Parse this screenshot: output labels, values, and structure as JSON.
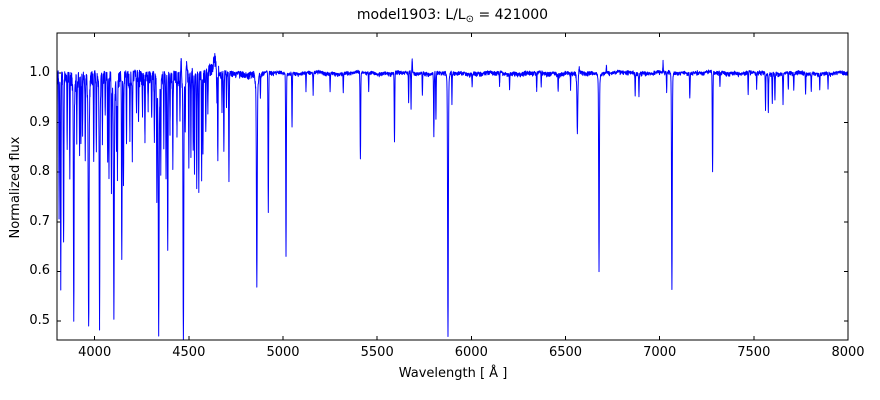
{
  "figure": {
    "background": "#ffffff",
    "frame_color": "#000000"
  },
  "chart_data": {
    "type": "line",
    "title": "model1903: L/L⊙ = 421000",
    "title_parts": {
      "prefix": "model1903: L/L",
      "subscript": "⊙",
      "suffix": " = 421000"
    },
    "xlabel": "Wavelength [ Å ]",
    "ylabel": "Normalized flux",
    "xlim": [
      3800,
      8000
    ],
    "ylim": [
      0.4617,
      1.0806
    ],
    "xticks": [
      4000,
      4500,
      5000,
      5500,
      6000,
      6500,
      7000,
      7500,
      8000
    ],
    "xtick_labels": [
      "4000",
      "4500",
      "5000",
      "5500",
      "6000",
      "6500",
      "7000",
      "7500",
      "8000"
    ],
    "yticks": [
      1.0,
      0.9,
      0.8,
      0.7,
      0.6,
      0.5
    ],
    "ytick_labels": [
      "1.0",
      "0.9",
      "0.8",
      "0.7",
      "0.6",
      "0.5"
    ],
    "line_color": "#0000ff",
    "continuum_flux": 1.0,
    "noise_regions": [
      [
        3800,
        4450,
        0.03,
        0.005
      ],
      [
        4450,
        4660,
        0.022,
        0.01
      ],
      [
        4660,
        4900,
        0.012,
        0.004
      ],
      [
        4900,
        5900,
        0.006,
        0.003
      ],
      [
        5900,
        6620,
        0.008,
        0.003
      ],
      [
        6620,
        7400,
        0.006,
        0.004
      ],
      [
        7400,
        8000,
        0.007,
        0.003
      ]
    ],
    "absorption_lines": [
      [
        3798,
        0.6,
        1.6
      ],
      [
        3811,
        0.72,
        1.2
      ],
      [
        3820,
        0.575,
        1.5
      ],
      [
        3835,
        0.66,
        1.6
      ],
      [
        3854,
        0.86,
        1.2
      ],
      [
        3868,
        0.8,
        1.2
      ],
      [
        3889,
        0.565,
        1.7
      ],
      [
        3889,
        0.95,
        5.0
      ],
      [
        3905,
        0.88,
        1.2
      ],
      [
        3920,
        0.84,
        1.2
      ],
      [
        3927,
        0.86,
        1.2
      ],
      [
        3936,
        0.89,
        1.2
      ],
      [
        3950,
        0.82,
        1.2
      ],
      [
        3968,
        0.55,
        2.0
      ],
      [
        3968,
        0.94,
        5.0
      ],
      [
        3995,
        0.82,
        1.4
      ],
      [
        4009,
        0.85,
        1.3
      ],
      [
        4026,
        0.555,
        1.7
      ],
      [
        4026,
        0.95,
        4.5
      ],
      [
        4041,
        0.88,
        1.3
      ],
      [
        4056,
        0.92,
        1.2
      ],
      [
        4069,
        0.82,
        1.3
      ],
      [
        4076,
        0.8,
        1.3
      ],
      [
        4089,
        0.78,
        1.4
      ],
      [
        4102,
        0.6,
        1.9
      ],
      [
        4102,
        0.93,
        5.5
      ],
      [
        4116,
        0.86,
        1.3
      ],
      [
        4121,
        0.8,
        1.3
      ],
      [
        4144,
        0.635,
        1.6
      ],
      [
        4153,
        0.78,
        1.3
      ],
      [
        4169,
        0.86,
        1.2
      ],
      [
        4187,
        0.88,
        1.2
      ],
      [
        4200,
        0.83,
        1.4
      ],
      [
        4222,
        0.93,
        1.2
      ],
      [
        4233,
        0.91,
        1.2
      ],
      [
        4254,
        0.92,
        1.2
      ],
      [
        4267,
        0.87,
        1.3
      ],
      [
        4284,
        0.93,
        1.2
      ],
      [
        4303,
        0.91,
        1.2
      ],
      [
        4317,
        0.87,
        1.3
      ],
      [
        4330,
        0.78,
        1.3
      ],
      [
        4340,
        0.56,
        1.9
      ],
      [
        4340,
        0.93,
        5.5
      ],
      [
        4351,
        0.82,
        1.3
      ],
      [
        4367,
        0.86,
        1.2
      ],
      [
        4379,
        0.79,
        1.3
      ],
      [
        4388,
        0.645,
        1.5
      ],
      [
        4400,
        0.9,
        1.2
      ],
      [
        4415,
        0.83,
        1.3
      ],
      [
        4437,
        0.89,
        1.2
      ],
      [
        4453,
        0.91,
        1.2
      ],
      [
        4471,
        0.515,
        1.9
      ],
      [
        4471,
        0.95,
        5.0
      ],
      [
        4481,
        0.89,
        1.2
      ],
      [
        4500,
        0.81,
        1.3
      ],
      [
        4511,
        0.83,
        1.2
      ],
      [
        4523,
        0.85,
        1.2
      ],
      [
        4530,
        0.8,
        1.2
      ],
      [
        4542,
        0.77,
        1.4
      ],
      [
        4553,
        0.76,
        1.3
      ],
      [
        4568,
        0.79,
        1.3
      ],
      [
        4575,
        0.84,
        1.2
      ],
      [
        4590,
        0.88,
        1.2
      ],
      [
        4601,
        0.92,
        1.2
      ],
      [
        4649,
        0.95,
        1.0
      ],
      [
        4654,
        0.82,
        1.3
      ],
      [
        4676,
        0.93,
        1.1
      ],
      [
        4686,
        0.84,
        1.4
      ],
      [
        4700,
        0.93,
        1.1
      ],
      [
        4713,
        0.78,
        1.4
      ],
      [
        4861,
        0.627,
        2.0
      ],
      [
        4861,
        0.95,
        5.5
      ],
      [
        4880,
        0.95,
        1.1
      ],
      [
        4922,
        0.72,
        1.6
      ],
      [
        5016,
        0.633,
        1.6
      ],
      [
        5048,
        0.89,
        1.3
      ],
      [
        5122,
        0.965,
        1.1
      ],
      [
        5160,
        0.958,
        1.1
      ],
      [
        5250,
        0.965,
        1.1
      ],
      [
        5320,
        0.96,
        1.1
      ],
      [
        5411,
        0.825,
        1.6
      ],
      [
        5455,
        0.962,
        1.1
      ],
      [
        5592,
        0.86,
        1.5
      ],
      [
        5667,
        0.94,
        1.2
      ],
      [
        5680,
        0.925,
        1.2
      ],
      [
        5740,
        0.955,
        1.1
      ],
      [
        5801,
        0.875,
        1.5
      ],
      [
        5812,
        0.905,
        1.4
      ],
      [
        5876,
        0.508,
        1.9
      ],
      [
        5876,
        0.96,
        5.0
      ],
      [
        5897,
        0.94,
        1.2
      ],
      [
        6004,
        0.975,
        1.0
      ],
      [
        6150,
        0.975,
        1.0
      ],
      [
        6203,
        0.97,
        1.1
      ],
      [
        6347,
        0.965,
        1.2
      ],
      [
        6371,
        0.97,
        1.1
      ],
      [
        6461,
        0.965,
        1.1
      ],
      [
        6527,
        0.97,
        1.0
      ],
      [
        6563,
        0.9,
        1.8
      ],
      [
        6563,
        0.975,
        4.5
      ],
      [
        6678,
        0.637,
        1.7
      ],
      [
        6678,
        0.97,
        4.0
      ],
      [
        6870,
        0.958,
        1.2
      ],
      [
        6890,
        0.955,
        1.3
      ],
      [
        7037,
        0.962,
        1.1
      ],
      [
        7065,
        0.593,
        1.8
      ],
      [
        7065,
        0.97,
        4.0
      ],
      [
        7160,
        0.952,
        1.3
      ],
      [
        7281,
        0.8,
        1.6
      ],
      [
        7320,
        0.97,
        1.1
      ],
      [
        7470,
        0.956,
        1.3
      ],
      [
        7515,
        0.97,
        1.1
      ],
      [
        7562,
        0.93,
        1.3
      ],
      [
        7577,
        0.925,
        1.3
      ],
      [
        7598,
        0.94,
        1.2
      ],
      [
        7612,
        0.945,
        1.2
      ],
      [
        7655,
        0.94,
        1.3
      ],
      [
        7683,
        0.965,
        1.1
      ],
      [
        7712,
        0.965,
        1.1
      ],
      [
        7775,
        0.96,
        1.2
      ],
      [
        7805,
        0.962,
        1.2
      ],
      [
        7850,
        0.97,
        1.1
      ],
      [
        7894,
        0.968,
        1.1
      ]
    ],
    "emission_lines": [
      [
        4459,
        1.035,
        1.2
      ],
      [
        4467,
        1.02,
        0.9
      ],
      [
        4488,
        1.018,
        1.0
      ],
      [
        4620,
        1.013,
        14.0
      ],
      [
        4634,
        1.028,
        3.0
      ],
      [
        4641,
        1.024,
        2.5
      ],
      [
        4658,
        1.012,
        2.0
      ],
      [
        5686,
        1.028,
        1.3
      ],
      [
        6572,
        1.012,
        1.6
      ],
      [
        6717,
        1.012,
        1.5
      ],
      [
        7018,
        1.022,
        1.2
      ]
    ]
  }
}
